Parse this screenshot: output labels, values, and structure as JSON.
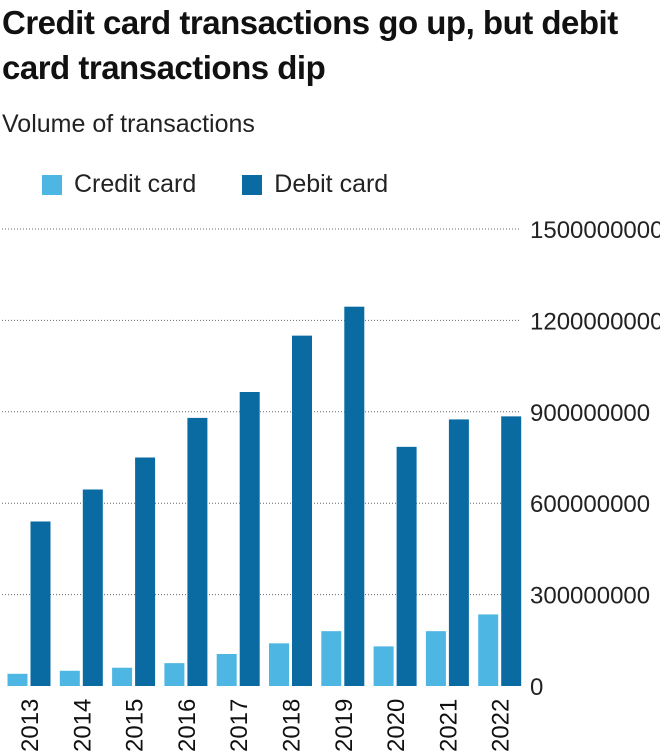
{
  "title": "Credit card transactions go up, but debit card transactions dip",
  "subtitle": "Volume of transactions",
  "colors": {
    "credit": "#4eb6e2",
    "debit": "#0a6ba3",
    "grid": "#666666",
    "text": "#111111"
  },
  "chart_data": {
    "type": "bar",
    "title": "Credit card transactions go up, but debit card transactions dip",
    "subtitle": "Volume of transactions",
    "categories": [
      "2013",
      "2014",
      "2015",
      "2016",
      "2017",
      "2018",
      "2019",
      "2020",
      "2021",
      "2022"
    ],
    "series": [
      {
        "name": "Credit card",
        "values": [
          40000000,
          50000000,
          60000000,
          75000000,
          105000000,
          140000000,
          180000000,
          130000000,
          180000000,
          235000000
        ]
      },
      {
        "name": "Debit card",
        "values": [
          540000000,
          645000000,
          750000000,
          880000000,
          965000000,
          1150000000,
          1245000000,
          785000000,
          875000000,
          885000000
        ]
      }
    ],
    "yticks": [
      "0",
      "300000000",
      "600000000",
      "900000000",
      "1200000000",
      "1500000000"
    ],
    "ylim": [
      0,
      1500000000
    ],
    "xlabel": "",
    "ylabel": "",
    "grid": true,
    "legend_position": "top-left",
    "y_axis_position": "right"
  }
}
